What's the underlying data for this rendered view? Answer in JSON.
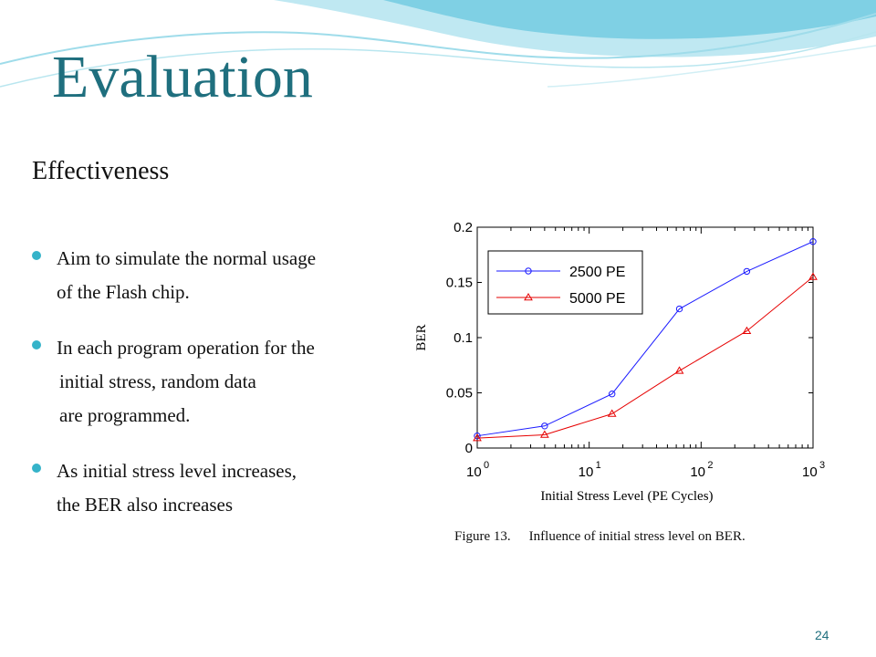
{
  "slide": {
    "title": "Evaluation",
    "subtitle": "Effectiveness",
    "bullets": [
      {
        "lines": [
          "Aim to simulate the normal usage",
          "of the Flash chip."
        ]
      },
      {
        "lines": [
          "In each program operation for the",
          "initial stress, random data",
          "are programmed."
        ]
      },
      {
        "lines": [
          "As initial stress level increases,",
          "the BER also increases"
        ]
      }
    ],
    "page_number": "24"
  },
  "figure": {
    "caption_label": "Figure 13.",
    "caption_text": "Influence of initial stress level on BER."
  },
  "colors": {
    "title": "#1f6f7e",
    "bullet": "#35b3c9",
    "series_blue": "#1a1aff",
    "series_red": "#e60000"
  },
  "chart_data": {
    "type": "line",
    "xlabel": "Initial Stress Level (PE Cycles)",
    "ylabel": "BER",
    "x_scale": "log",
    "xlim": [
      1,
      1000
    ],
    "ylim": [
      0,
      0.2
    ],
    "x_ticks": [
      {
        "base": "10",
        "exp": "0",
        "value": 1
      },
      {
        "base": "10",
        "exp": "1",
        "value": 10
      },
      {
        "base": "10",
        "exp": "2",
        "value": 100
      },
      {
        "base": "10",
        "exp": "3",
        "value": 1000
      }
    ],
    "y_ticks": [
      {
        "label": "0",
        "value": 0
      },
      {
        "label": "0.05",
        "value": 0.05
      },
      {
        "label": "0.1",
        "value": 0.1
      },
      {
        "label": "0.15",
        "value": 0.15
      },
      {
        "label": "0.2",
        "value": 0.2
      }
    ],
    "legend_position": "top-left",
    "series": [
      {
        "name": "2500 PE",
        "marker": "circle",
        "color": "#1a1aff",
        "points": [
          [
            1,
            0.011
          ],
          [
            4,
            0.02
          ],
          [
            16,
            0.049
          ],
          [
            64,
            0.126
          ],
          [
            256,
            0.16
          ],
          [
            1000,
            0.187
          ]
        ]
      },
      {
        "name": "5000 PE",
        "marker": "triangle",
        "color": "#e60000",
        "points": [
          [
            1,
            0.009
          ],
          [
            4,
            0.012
          ],
          [
            16,
            0.031
          ],
          [
            64,
            0.07
          ],
          [
            256,
            0.106
          ],
          [
            1000,
            0.155
          ]
        ]
      }
    ]
  }
}
